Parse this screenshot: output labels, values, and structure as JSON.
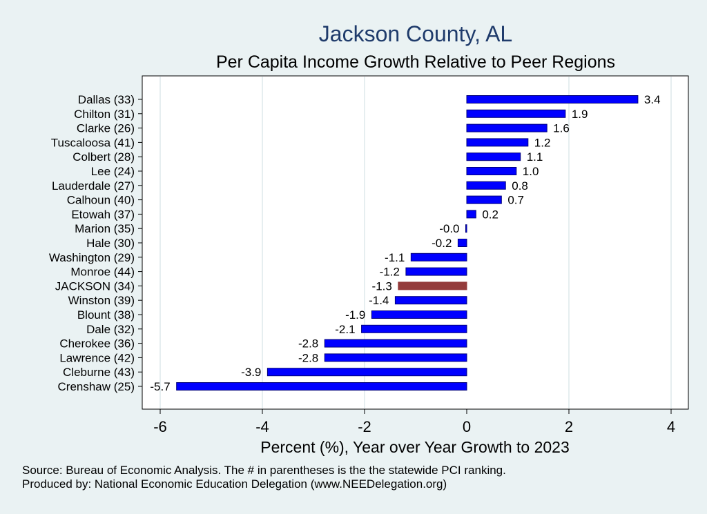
{
  "chart_data": {
    "type": "bar",
    "orientation": "horizontal",
    "title": "Jackson County, AL",
    "subtitle": "Per Capita Income Growth Relative to Peer Regions",
    "xlabel": "Percent (%), Year over Year Growth to 2023",
    "ylabel": "",
    "xlim": [
      -6.6,
      4.3
    ],
    "xticks": [
      -6,
      -4,
      -2,
      0,
      2,
      4
    ],
    "grid": true,
    "categories": [
      "Dallas (33)",
      "Chilton (31)",
      "Clarke (26)",
      "Tuscaloosa (41)",
      "Colbert (28)",
      "Lee (24)",
      "Lauderdale (27)",
      "Calhoun (40)",
      "Etowah (37)",
      "Marion (35)",
      "Hale (30)",
      "Washington (29)",
      "Monroe (44)",
      "JACKSON (34)",
      "Winston (39)",
      "Blount (38)",
      "Dale (32)",
      "Cherokee (36)",
      "Lawrence (42)",
      "Cleburne (43)",
      "Crenshaw (25)"
    ],
    "values": [
      3.35,
      1.93,
      1.57,
      1.2,
      1.05,
      0.97,
      0.76,
      0.68,
      0.18,
      -0.02,
      -0.17,
      -1.09,
      -1.19,
      -1.34,
      -1.4,
      -1.86,
      -2.06,
      -2.78,
      -2.78,
      -3.9,
      -5.68
    ],
    "labels": [
      "3.4",
      "1.9",
      "1.6",
      "1.2",
      "1.1",
      "1.0",
      "0.8",
      "0.7",
      "0.2",
      "-0.0",
      "-0.2",
      "-1.1",
      "-1.2",
      "-1.3",
      "-1.4",
      "-1.9",
      "-2.1",
      "-2.8",
      "-2.8",
      "-3.9",
      "-5.7"
    ],
    "highlight": "JACKSON (34)",
    "colors": {
      "bar": "#0000ff",
      "bar_edge": "#00007a",
      "highlight": "#943c3c",
      "plot_bg": "#ffffff",
      "grid": "#e6eef0"
    }
  },
  "source_note": {
    "line1": "Source: Bureau of Economic Analysis. The # in parentheses is the the statewide PCI ranking.",
    "line2": "Produced by: National Economic Education Delegation (www.NEEDelegation.org)"
  }
}
